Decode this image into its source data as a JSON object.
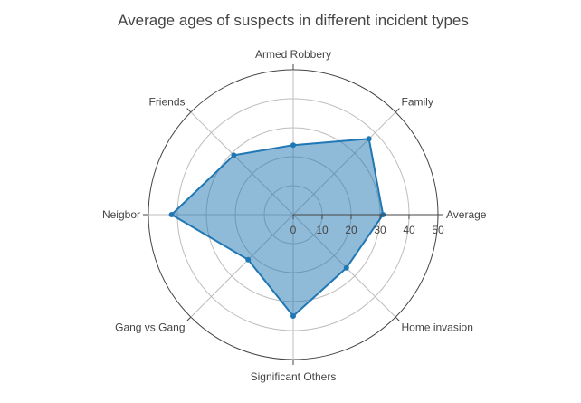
{
  "chart_data": {
    "type": "radar",
    "title": "Average ages of suspects in different incident types",
    "categories": [
      "Average",
      "Family",
      "Armed Robbery",
      "Friends",
      "Neigbor",
      "Gang vs Gang",
      "Significant Others",
      "Home invasion"
    ],
    "series": [
      {
        "values": [
          31,
          37,
          24,
          29,
          42,
          22,
          35,
          26
        ]
      }
    ],
    "radial_range": [
      0,
      50
    ],
    "radial_ticks": [
      0,
      10,
      20,
      30,
      40,
      50
    ],
    "grid": true,
    "colors": {
      "line": "#1f77b4",
      "fill": "#1f77b4",
      "fill_opacity": 0.5,
      "text": "#444444"
    }
  }
}
